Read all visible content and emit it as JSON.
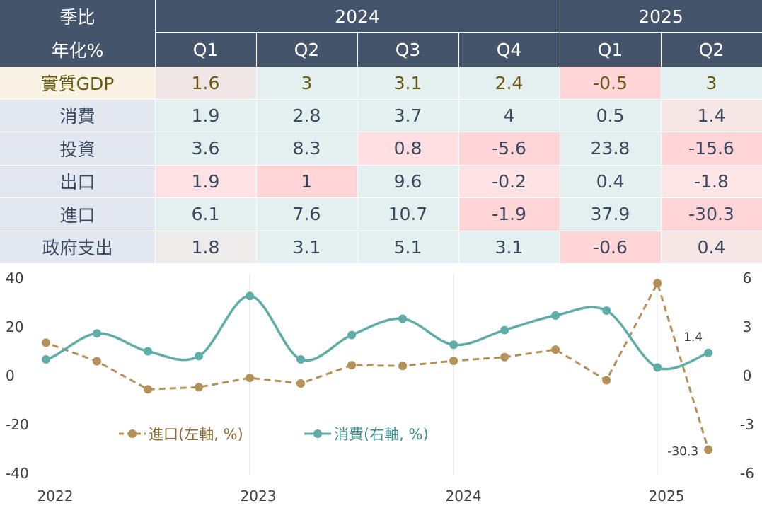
{
  "table": {
    "corner_line1": "季比",
    "corner_line2": "年化%",
    "years": [
      {
        "label": "2024"
      },
      {
        "label": "2025"
      }
    ],
    "quarters": [
      "Q1",
      "Q2",
      "Q3",
      "Q4",
      "Q1",
      "Q2"
    ],
    "rows": [
      {
        "label": "實質GDP",
        "values": [
          "1.6",
          "3",
          "3.1",
          "2.4",
          "-0.5",
          "3"
        ]
      },
      {
        "label": "消費",
        "values": [
          "1.9",
          "2.8",
          "3.7",
          "4",
          "0.5",
          "1.4"
        ]
      },
      {
        "label": "投資",
        "values": [
          "3.6",
          "8.3",
          "0.8",
          "-5.6",
          "23.8",
          "-15.6"
        ]
      },
      {
        "label": "出口",
        "values": [
          "1.9",
          "1",
          "9.6",
          "-0.2",
          "0.4",
          "-1.8"
        ]
      },
      {
        "label": "進口",
        "values": [
          "6.1",
          "7.6",
          "10.7",
          "-1.9",
          "37.9",
          "-30.3"
        ]
      },
      {
        "label": "政府支出",
        "values": [
          "1.8",
          "3.1",
          "5.1",
          "3.1",
          "-0.6",
          "0.4"
        ]
      }
    ],
    "colors": {
      "header": "#44546a",
      "label_bg": "#e3e7ef",
      "gdp_label_bg": "#f8f3e4",
      "gdp_text": "#6b5a12",
      "text": "#3b4a60",
      "cell_greenish": "#e4efef",
      "cell_pinkish": "#ffd5d8",
      "cell_neutral": "#eeebeb"
    },
    "cell_colors": [
      [
        "#f1e6e6",
        "#e4efef",
        "#e4efef",
        "#e4efef",
        "#ffd5d8",
        "#e4efef"
      ],
      [
        "#e4efef",
        "#e4efef",
        "#e4efef",
        "#e4efef",
        "#e4efef",
        "#f6e6e6"
      ],
      [
        "#e4efef",
        "#e4efef",
        "#ffdfe1",
        "#ffd5d8",
        "#e4efef",
        "#ffd5d8"
      ],
      [
        "#ffe3e4",
        "#ffd5d8",
        "#e4efef",
        "#ffe3e4",
        "#e4efef",
        "#ffe6e6"
      ],
      [
        "#e4efef",
        "#e4efef",
        "#e4efef",
        "#ffd5d8",
        "#e4efef",
        "#ffd5d8"
      ],
      [
        "#eeebeb",
        "#e4efef",
        "#e4efef",
        "#e4efef",
        "#ffd5d8",
        "#f7e6e6"
      ]
    ]
  },
  "chart_data": {
    "type": "line",
    "x_ticks": [
      "2022",
      "2023",
      "2024",
      "2025"
    ],
    "y_left": {
      "ticks": [
        "40",
        "20",
        "0",
        "-20",
        "-40"
      ],
      "range": [
        -40,
        40
      ]
    },
    "y_right": {
      "ticks": [
        "6",
        "3",
        "0",
        "-3",
        "-6"
      ],
      "range": [
        -6,
        6
      ]
    },
    "grid": true,
    "legend_position": "bottom-left",
    "series": [
      {
        "name": "進口(左軸, %)",
        "axis": "left",
        "style": "dashed",
        "color": "#b5915a",
        "x": [
          "2022-Q1",
          "2022-Q2",
          "2022-Q3",
          "2022-Q4",
          "2023-Q1",
          "2023-Q2",
          "2023-Q3",
          "2023-Q4",
          "2024-Q1",
          "2024-Q2",
          "2024-Q3",
          "2024-Q4",
          "2025-Q1",
          "2025-Q2"
        ],
        "values": [
          13.5,
          5.9,
          -5.6,
          -4.7,
          -0.9,
          -3.2,
          4.3,
          4.0,
          6.1,
          7.6,
          10.7,
          -1.9,
          37.9,
          -30.3
        ],
        "end_label": "-30.3"
      },
      {
        "name": "消費(右軸, %)",
        "axis": "right",
        "style": "solid",
        "color": "#5fada6",
        "x": [
          "2022-Q1",
          "2022-Q2",
          "2022-Q3",
          "2022-Q4",
          "2023-Q1",
          "2023-Q2",
          "2023-Q3",
          "2023-Q4",
          "2024-Q1",
          "2024-Q2",
          "2024-Q3",
          "2024-Q4",
          "2025-Q1",
          "2025-Q2"
        ],
        "values": [
          1.0,
          2.6,
          1.5,
          1.2,
          4.9,
          1.0,
          2.5,
          3.5,
          1.9,
          2.8,
          3.7,
          4.0,
          0.5,
          1.4
        ],
        "end_label": "1.4"
      }
    ]
  }
}
